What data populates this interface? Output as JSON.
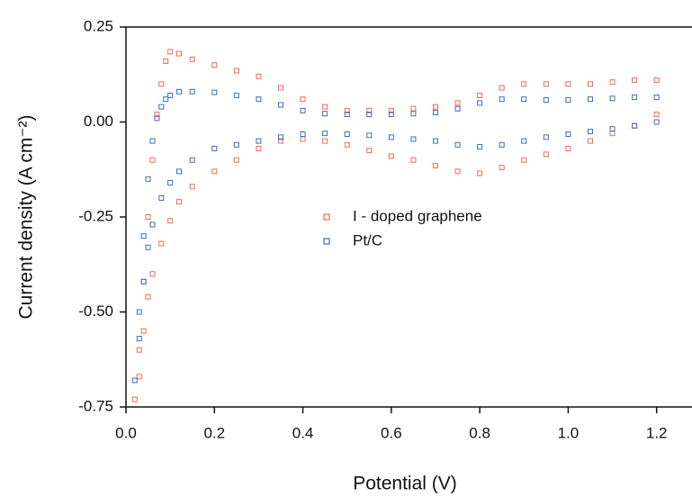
{
  "chart_data": {
    "type": "scatter",
    "xlabel": "Potential (V)",
    "ylabel": "Current density (A cm⁻²)",
    "xlim": [
      0,
      1.28
    ],
    "ylim": [
      -0.75,
      0.25
    ],
    "xticks": [
      {
        "value": 0,
        "label": "0.0"
      },
      0.2,
      0.4,
      0.6,
      0.8,
      {
        "value": 1,
        "label": "1.0"
      },
      1.2
    ],
    "yticks": [
      0.25,
      {
        "value": 0,
        "label": "0.00"
      },
      -0.25,
      {
        "value": -0.5,
        "label": "-0.50"
      },
      {
        "value": -0.75,
        "label": "-0.75"
      }
    ],
    "series": [
      {
        "name": "I - doped graphene",
        "color": "#f26b4f",
        "x": [
          0.02,
          0.03,
          0.04,
          0.05,
          0.06,
          0.07,
          0.08,
          0.09,
          0.1,
          0.12,
          0.15,
          0.2,
          0.25,
          0.3,
          0.35,
          0.4,
          0.45,
          0.5,
          0.55,
          0.6,
          0.65,
          0.7,
          0.75,
          0.8,
          0.85,
          0.9,
          0.95,
          1.0,
          1.05,
          1.1,
          1.15,
          1.2,
          1.2,
          1.15,
          1.1,
          1.05,
          1.0,
          0.95,
          0.9,
          0.85,
          0.8,
          0.75,
          0.7,
          0.65,
          0.6,
          0.55,
          0.5,
          0.45,
          0.4,
          0.35,
          0.3,
          0.25,
          0.2,
          0.15,
          0.12,
          0.1,
          0.08,
          0.06,
          0.05,
          0.04,
          0.03
        ],
        "values": [
          -0.73,
          -0.6,
          -0.42,
          -0.25,
          -0.1,
          0.02,
          0.1,
          0.16,
          0.185,
          0.18,
          0.165,
          0.15,
          0.135,
          0.12,
          0.09,
          0.06,
          0.04,
          0.03,
          0.03,
          0.03,
          0.035,
          0.04,
          0.05,
          0.07,
          0.09,
          0.1,
          0.1,
          0.1,
          0.1,
          0.105,
          0.11,
          0.11,
          0.02,
          -0.01,
          -0.03,
          -0.05,
          -0.07,
          -0.085,
          -0.1,
          -0.12,
          -0.135,
          -0.13,
          -0.115,
          -0.1,
          -0.09,
          -0.075,
          -0.06,
          -0.05,
          -0.045,
          -0.05,
          -0.07,
          -0.1,
          -0.13,
          -0.17,
          -0.21,
          -0.26,
          -0.32,
          -0.4,
          -0.46,
          -0.55,
          -0.67
        ]
      },
      {
        "name": "Pt/C",
        "color": "#3a6ec2",
        "x": [
          0.02,
          0.03,
          0.04,
          0.05,
          0.06,
          0.07,
          0.08,
          0.09,
          0.1,
          0.12,
          0.15,
          0.2,
          0.25,
          0.3,
          0.35,
          0.4,
          0.45,
          0.5,
          0.55,
          0.6,
          0.65,
          0.7,
          0.75,
          0.8,
          0.85,
          0.9,
          0.95,
          1.0,
          1.05,
          1.1,
          1.15,
          1.2,
          1.2,
          1.15,
          1.1,
          1.05,
          1.0,
          0.95,
          0.9,
          0.85,
          0.8,
          0.75,
          0.7,
          0.65,
          0.6,
          0.55,
          0.5,
          0.45,
          0.4,
          0.35,
          0.3,
          0.25,
          0.2,
          0.15,
          0.12,
          0.1,
          0.08,
          0.06,
          0.05,
          0.04,
          0.03
        ],
        "values": [
          -0.68,
          -0.5,
          -0.3,
          -0.15,
          -0.05,
          0.01,
          0.04,
          0.06,
          0.07,
          0.08,
          0.08,
          0.078,
          0.07,
          0.06,
          0.045,
          0.03,
          0.022,
          0.02,
          0.02,
          0.02,
          0.022,
          0.025,
          0.035,
          0.05,
          0.06,
          0.06,
          0.058,
          0.058,
          0.06,
          0.062,
          0.065,
          0.065,
          0.0,
          -0.01,
          -0.018,
          -0.025,
          -0.032,
          -0.04,
          -0.05,
          -0.06,
          -0.065,
          -0.06,
          -0.05,
          -0.045,
          -0.04,
          -0.035,
          -0.032,
          -0.03,
          -0.032,
          -0.04,
          -0.05,
          -0.06,
          -0.07,
          -0.1,
          -0.13,
          -0.16,
          -0.2,
          -0.27,
          -0.33,
          -0.42,
          -0.57
        ]
      }
    ]
  }
}
